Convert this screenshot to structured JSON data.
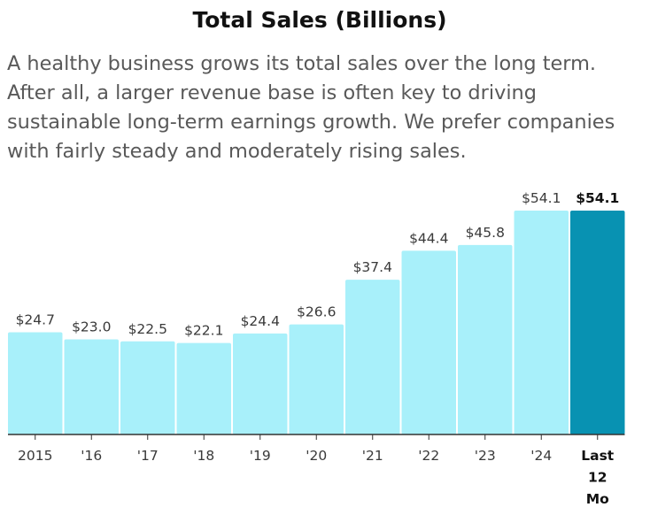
{
  "chart_data": {
    "type": "bar",
    "title": "Total Sales (Billions)",
    "description": "A healthy business grows its total sales over the long term. After all, a larger revenue base is often key to driving sustainable long-term earnings growth. We prefer companies with fairly steady and moderately rising sales.",
    "categories": [
      "2015",
      "'16",
      "'17",
      "'18",
      "'19",
      "'20",
      "'21",
      "'22",
      "'23",
      "'24",
      "Last 12 Mo"
    ],
    "values": [
      24.7,
      23.0,
      22.5,
      22.1,
      24.4,
      26.6,
      37.4,
      44.4,
      45.8,
      54.1,
      54.1
    ],
    "value_labels": [
      "$24.7",
      "$23.0",
      "$22.5",
      "$22.1",
      "$24.4",
      "$26.6",
      "$37.4",
      "$44.4",
      "$45.8",
      "$54.1",
      "$54.1"
    ],
    "highlight_index": 10,
    "colors": {
      "bar": "#a8f0fa",
      "highlight": "#0892b2",
      "axis": "#333333"
    },
    "xlabel": "",
    "ylabel": "",
    "ylim": [
      0,
      54.1
    ],
    "grid": false,
    "legend": "none"
  }
}
